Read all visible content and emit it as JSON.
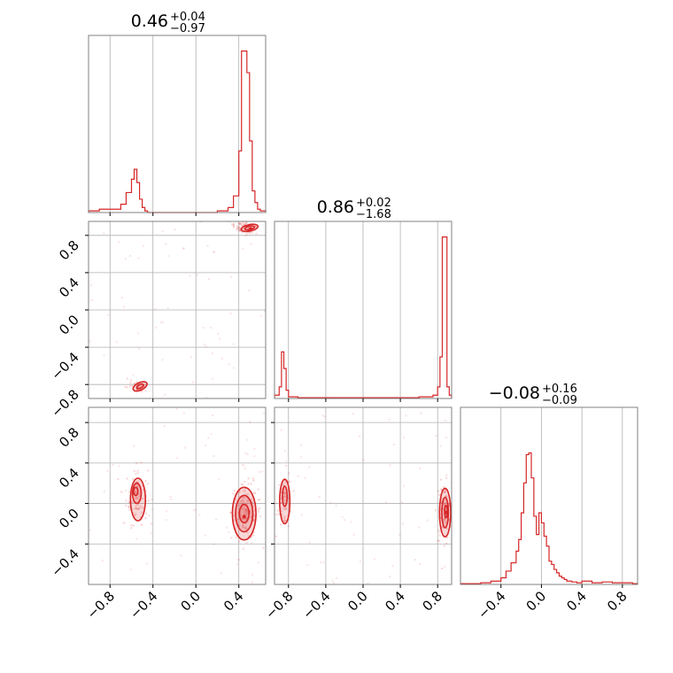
{
  "chart_data": {
    "type": "corner",
    "color": "#d62728",
    "grid": true,
    "params": [
      {
        "median": 0.46,
        "plus": 0.04,
        "minus": 0.97,
        "range": [
          -1.0,
          0.65
        ],
        "title_main": "0.46",
        "title_plus": "+0.04",
        "title_minus": "−0.97"
      },
      {
        "median": 0.86,
        "plus": 0.02,
        "minus": 1.68,
        "range": [
          -0.95,
          0.95
        ],
        "title_main": "0.86",
        "title_plus": "+0.02",
        "title_minus": "−1.68"
      },
      {
        "median": -0.08,
        "plus": 0.16,
        "minus": 0.09,
        "range": [
          -0.8,
          0.95
        ],
        "title_main": "−0.08",
        "title_plus": "+0.16",
        "title_minus": "−0.09"
      }
    ],
    "ticks": [
      {
        "values": [
          -0.8,
          -0.4,
          0.0,
          0.4
        ],
        "labels": [
          "−0.8",
          "−0.4",
          "0.0",
          "0.4"
        ]
      },
      {
        "values": [
          -0.8,
          -0.4,
          0.0,
          0.4,
          0.8
        ],
        "labels": [
          "−0.8",
          "−0.4",
          "0.0",
          "0.4",
          "0.8"
        ]
      },
      {
        "values": [
          -0.4,
          0.0,
          0.4,
          0.8
        ],
        "labels": [
          "−0.4",
          "0.0",
          "0.4",
          "0.8"
        ]
      }
    ],
    "y_ticks": [
      null,
      {
        "values": [
          -0.8,
          -0.4,
          0.0,
          0.4,
          0.8
        ],
        "labels": [
          "−0.8",
          "−0.4",
          "0.0",
          "0.4",
          "0.8"
        ]
      },
      {
        "values": [
          -0.4,
          0.0,
          0.4,
          0.8
        ],
        "labels": [
          "−0.4",
          "0.0",
          "0.4",
          "0.8"
        ]
      }
    ],
    "hist": [
      {
        "edges": [
          -1.0,
          -0.9,
          -0.8,
          -0.7,
          -0.65,
          -0.6,
          -0.575,
          -0.55,
          -0.525,
          -0.5,
          -0.475,
          -0.45,
          -0.4,
          -0.2,
          0.0,
          0.2,
          0.3,
          0.35,
          0.4,
          0.425,
          0.45,
          0.475,
          0.5,
          0.525,
          0.55,
          0.575,
          0.6,
          0.65
        ],
        "counts": [
          0.01,
          0.02,
          0.02,
          0.05,
          0.12,
          0.2,
          0.26,
          0.18,
          0.08,
          0.03,
          0.01,
          0,
          0,
          0,
          0,
          0.01,
          0.03,
          0.1,
          0.37,
          0.97,
          0.97,
          0.84,
          0.43,
          0.13,
          0.06,
          0.02,
          0.01
        ]
      },
      {
        "edges": [
          -0.95,
          -0.9,
          -0.875,
          -0.85,
          -0.825,
          -0.8,
          -0.75,
          -0.7,
          -0.6,
          -0.4,
          -0.2,
          0.0,
          0.2,
          0.4,
          0.6,
          0.75,
          0.8,
          0.825,
          0.85,
          0.875,
          0.9,
          0.925,
          0.95
        ],
        "counts": [
          0.02,
          0.07,
          0.28,
          0.18,
          0.05,
          0.01,
          0.01,
          0.005,
          0.005,
          0.005,
          0.005,
          0.005,
          0.005,
          0.005,
          0.01,
          0.02,
          0.07,
          0.25,
          0.97,
          0.97,
          0.07,
          0.02
        ]
      },
      {
        "edges": [
          -0.8,
          -0.6,
          -0.5,
          -0.4,
          -0.35,
          -0.3,
          -0.25,
          -0.225,
          -0.2,
          -0.175,
          -0.15,
          -0.125,
          -0.1,
          -0.075,
          -0.05,
          -0.025,
          0.0,
          0.025,
          0.05,
          0.075,
          0.1,
          0.125,
          0.15,
          0.175,
          0.2,
          0.225,
          0.25,
          0.3,
          0.35,
          0.4,
          0.5,
          0.6,
          0.7,
          0.8,
          0.9,
          0.95
        ],
        "counts": [
          0.005,
          0.01,
          0.02,
          0.04,
          0.08,
          0.13,
          0.2,
          0.27,
          0.43,
          0.61,
          0.78,
          0.79,
          0.64,
          0.41,
          0.3,
          0.43,
          0.37,
          0.29,
          0.23,
          0.14,
          0.12,
          0.09,
          0.07,
          0.05,
          0.04,
          0.03,
          0.02,
          0.015,
          0.01,
          0.02,
          0.01,
          0.015,
          0.01,
          0.01,
          0.005
        ]
      }
    ],
    "pairs": [
      {
        "row": 1,
        "col": 0,
        "modes": [
          {
            "cx": 0.45,
            "cy": 0.88,
            "sx": 0.06,
            "sy": 0.035,
            "rot": -20,
            "n": 70
          },
          {
            "cx": -0.55,
            "cy": -0.82,
            "sx": 0.05,
            "sy": 0.035,
            "rot": -25,
            "n": 40
          }
        ],
        "contours": [
          {
            "cx": 0.5,
            "cy": 0.88,
            "rx": 0.08,
            "ry": 0.035,
            "rot": -12
          },
          {
            "cx": 0.5,
            "cy": 0.88,
            "rx": 0.045,
            "ry": 0.02,
            "rot": -12
          },
          {
            "cx": -0.52,
            "cy": -0.82,
            "rx": 0.07,
            "ry": 0.04,
            "rot": -25
          },
          {
            "cx": -0.52,
            "cy": -0.82,
            "rx": 0.035,
            "ry": 0.02,
            "rot": -25
          }
        ],
        "dots": [
          [
            0.51,
            0.87
          ]
        ]
      },
      {
        "row": 2,
        "col": 0,
        "modes": [
          {
            "cx": -0.55,
            "cy": 0.08,
            "sx": 0.05,
            "sy": 0.14,
            "rot": 0,
            "n": 90
          },
          {
            "cx": 0.47,
            "cy": -0.08,
            "sx": 0.07,
            "sy": 0.14,
            "rot": 0,
            "n": 140
          }
        ],
        "contours": [
          {
            "cx": -0.54,
            "cy": 0.04,
            "rx": 0.07,
            "ry": 0.21,
            "rot": 0
          },
          {
            "cx": -0.55,
            "cy": 0.1,
            "rx": 0.04,
            "ry": 0.1,
            "rot": 0
          },
          {
            "cx": -0.56,
            "cy": 0.12,
            "rx": 0.02,
            "ry": 0.04,
            "rot": 0
          },
          {
            "cx": 0.45,
            "cy": -0.1,
            "rx": 0.11,
            "ry": 0.26,
            "rot": 0
          },
          {
            "cx": 0.45,
            "cy": -0.1,
            "rx": 0.08,
            "ry": 0.18,
            "rot": 0
          },
          {
            "cx": 0.45,
            "cy": -0.1,
            "rx": 0.045,
            "ry": 0.09,
            "rot": 0
          }
        ],
        "dots": [
          [
            0.45,
            -0.13
          ]
        ]
      },
      {
        "row": 2,
        "col": 1,
        "modes": [
          {
            "cx": -0.84,
            "cy": 0.03,
            "sx": 0.04,
            "sy": 0.14,
            "rot": 0,
            "n": 60
          },
          {
            "cx": 0.87,
            "cy": -0.08,
            "sx": 0.04,
            "sy": 0.14,
            "rot": 0,
            "n": 90
          }
        ],
        "contours": [
          {
            "cx": -0.84,
            "cy": 0.02,
            "rx": 0.055,
            "ry": 0.22,
            "rot": 0
          },
          {
            "cx": -0.84,
            "cy": 0.07,
            "rx": 0.025,
            "ry": 0.1,
            "rot": 0
          },
          {
            "cx": 0.88,
            "cy": -0.09,
            "rx": 0.06,
            "ry": 0.24,
            "rot": 0
          },
          {
            "cx": 0.88,
            "cy": -0.09,
            "rx": 0.035,
            "ry": 0.15,
            "rot": 0
          },
          {
            "cx": 0.89,
            "cy": -0.08,
            "rx": 0.015,
            "ry": 0.06,
            "rot": 0
          }
        ],
        "dots": [
          [
            0.89,
            -0.09
          ]
        ]
      }
    ]
  }
}
